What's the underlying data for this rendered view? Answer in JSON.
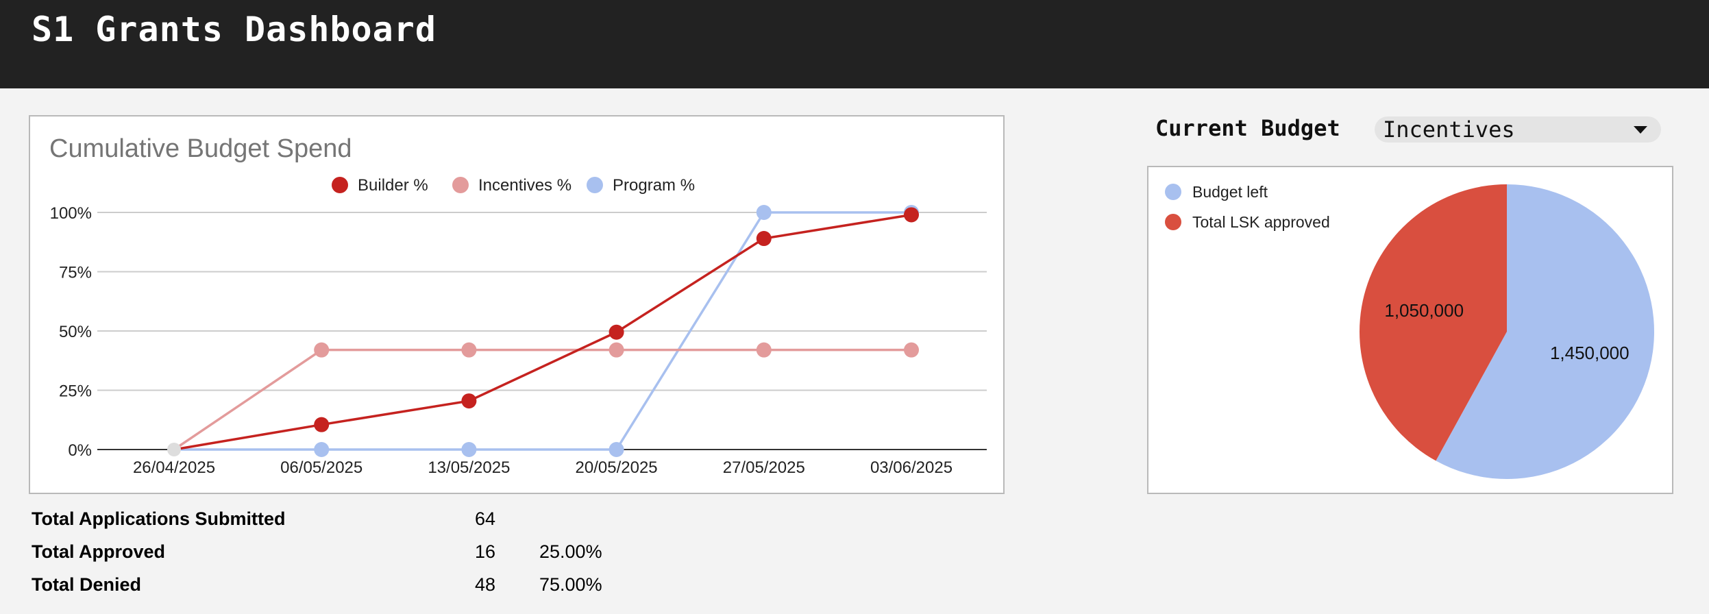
{
  "header": {
    "title": "S1 Grants Dashboard"
  },
  "line_chart": {
    "title": "Cumulative Budget Spend",
    "legend": [
      "Builder %",
      "Incentives %",
      "Program %"
    ]
  },
  "budget": {
    "label": "Current Budget",
    "selected": "Incentives"
  },
  "pie_chart": {
    "legend": [
      "Budget left",
      "Total LSK approved"
    ]
  },
  "stats": {
    "rows": [
      {
        "label": "Total Applications Submitted",
        "value": "64",
        "percent": ""
      },
      {
        "label": "Total Approved",
        "value": "16",
        "percent": "25.00%"
      },
      {
        "label": "Total Denied",
        "value": "48",
        "percent": "75.00%"
      }
    ]
  },
  "chart_data": [
    {
      "type": "line",
      "title": "Cumulative Budget Spend",
      "categories": [
        "26/04/2025",
        "06/05/2025",
        "13/05/2025",
        "20/05/2025",
        "27/05/2025",
        "03/06/2025"
      ],
      "y_ticks": [
        "0%",
        "25%",
        "50%",
        "75%",
        "100%"
      ],
      "ylim": [
        0,
        100
      ],
      "grid": true,
      "legend_position": "top",
      "series": [
        {
          "name": "Builder %",
          "color": "#c5221f",
          "values": [
            0,
            10.5,
            20.5,
            49.5,
            89,
            99
          ]
        },
        {
          "name": "Incentives %",
          "color": "#e39b9b",
          "values": [
            0,
            42,
            42,
            42,
            42,
            42
          ]
        },
        {
          "name": "Program %",
          "color": "#a8c0ef",
          "values": [
            0,
            0,
            0,
            0,
            100,
            100
          ]
        }
      ]
    },
    {
      "type": "pie",
      "legend_position": "top-left",
      "slices": [
        {
          "name": "Budget left",
          "value": 1450000,
          "label": "1,450,000",
          "color": "#a8c0ef"
        },
        {
          "name": "Total LSK approved",
          "value": 1050000,
          "label": "1,050,000",
          "color": "#d94f3f"
        }
      ]
    }
  ]
}
